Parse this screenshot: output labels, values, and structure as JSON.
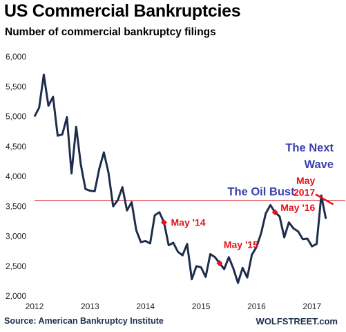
{
  "header": {
    "title": "US Commercial Bankruptcies",
    "subtitle": "Number of commercial bankruptcy filings"
  },
  "footer": {
    "source": "Source: American Bankruptcy Institute",
    "brand": "WOLFSTREET.com"
  },
  "colors": {
    "line": "#1f2d4c",
    "reference": "#d9252c",
    "annotation_red": "#e3121a",
    "annotation_blue": "#3a3fb0",
    "axis": "#222222"
  },
  "chart_data": {
    "type": "line",
    "title": "US Commercial Bankruptcies",
    "subtitle": "Number of commercial bankruptcy filings",
    "xlabel": "",
    "ylabel": "",
    "xlim": [
      2012,
      2017.6
    ],
    "ylim": [
      2000,
      6000
    ],
    "x_ticks": [
      2012,
      2013,
      2014,
      2015,
      2016,
      2017
    ],
    "x_tick_labels": [
      "2012",
      "2013",
      "2014",
      "2015",
      "2016",
      "2017"
    ],
    "y_ticks": [
      2000,
      2500,
      3000,
      3500,
      4000,
      4500,
      5000,
      5500,
      6000
    ],
    "y_tick_labels": [
      "2,000",
      "2,500",
      "3,000",
      "3,500",
      "4,000",
      "4,500",
      "5,000",
      "5,500",
      "6,000"
    ],
    "grid": false,
    "reference_line": {
      "y": 3600
    },
    "series": [
      {
        "points": [
          [
            "2012-01",
            5000
          ],
          [
            "2012-02",
            5150
          ],
          [
            "2012-03",
            5700
          ],
          [
            "2012-04",
            5180
          ],
          [
            "2012-05",
            5330
          ],
          [
            "2012-06",
            4680
          ],
          [
            "2012-07",
            4700
          ],
          [
            "2012-08",
            4990
          ],
          [
            "2012-09",
            4050
          ],
          [
            "2012-10",
            4830
          ],
          [
            "2012-11",
            4200
          ],
          [
            "2012-12",
            3790
          ],
          [
            "2013-01",
            3760
          ],
          [
            "2013-02",
            3750
          ],
          [
            "2013-03",
            4130
          ],
          [
            "2013-04",
            4400
          ],
          [
            "2013-05",
            4060
          ],
          [
            "2013-06",
            3500
          ],
          [
            "2013-07",
            3600
          ],
          [
            "2013-08",
            3820
          ],
          [
            "2013-09",
            3430
          ],
          [
            "2013-10",
            3570
          ],
          [
            "2013-11",
            3100
          ],
          [
            "2013-12",
            2900
          ],
          [
            "2014-01",
            2920
          ],
          [
            "2014-02",
            2880
          ],
          [
            "2014-03",
            3350
          ],
          [
            "2014-04",
            3400
          ],
          [
            "2014-05",
            3230
          ],
          [
            "2014-06",
            2850
          ],
          [
            "2014-07",
            2890
          ],
          [
            "2014-08",
            2740
          ],
          [
            "2014-09",
            2680
          ],
          [
            "2014-10",
            2870
          ],
          [
            "2014-11",
            2280
          ],
          [
            "2014-12",
            2500
          ],
          [
            "2015-01",
            2480
          ],
          [
            "2015-02",
            2320
          ],
          [
            "2015-03",
            2700
          ],
          [
            "2015-04",
            2650
          ],
          [
            "2015-05",
            2550
          ],
          [
            "2015-06",
            2450
          ],
          [
            "2015-07",
            2650
          ],
          [
            "2015-08",
            2460
          ],
          [
            "2015-09",
            2220
          ],
          [
            "2015-10",
            2470
          ],
          [
            "2015-11",
            2310
          ],
          [
            "2015-12",
            2690
          ],
          [
            "2016-01",
            2820
          ],
          [
            "2016-02",
            3050
          ],
          [
            "2016-03",
            3380
          ],
          [
            "2016-04",
            3520
          ],
          [
            "2016-05",
            3400
          ],
          [
            "2016-06",
            3330
          ],
          [
            "2016-07",
            2980
          ],
          [
            "2016-08",
            3230
          ],
          [
            "2016-09",
            3130
          ],
          [
            "2016-10",
            3080
          ],
          [
            "2016-11",
            2950
          ],
          [
            "2016-12",
            2960
          ],
          [
            "2017-01",
            2830
          ],
          [
            "2017-02",
            2870
          ],
          [
            "2017-03",
            3680
          ],
          [
            "2017-04",
            3290
          ]
        ]
      }
    ],
    "annotations": [
      {
        "text": "May '14",
        "x": "2014-05",
        "y": 3230,
        "marker": true
      },
      {
        "text": "May '15",
        "x": "2015-05",
        "y": 2550,
        "marker": true
      },
      {
        "text": "May '16",
        "x": "2016-05",
        "y": 3400,
        "marker": true
      },
      {
        "text": "The Oil Bust",
        "anchor_x": "2016-01",
        "anchor_y": 3750
      },
      {
        "text": "The Next Wave",
        "lines": [
          "The Next",
          "Wave"
        ]
      },
      {
        "text": "May 2017",
        "lines": [
          "May",
          "2017"
        ],
        "arrow_to": {
          "x": "2017-05",
          "y": 3600
        }
      }
    ]
  }
}
